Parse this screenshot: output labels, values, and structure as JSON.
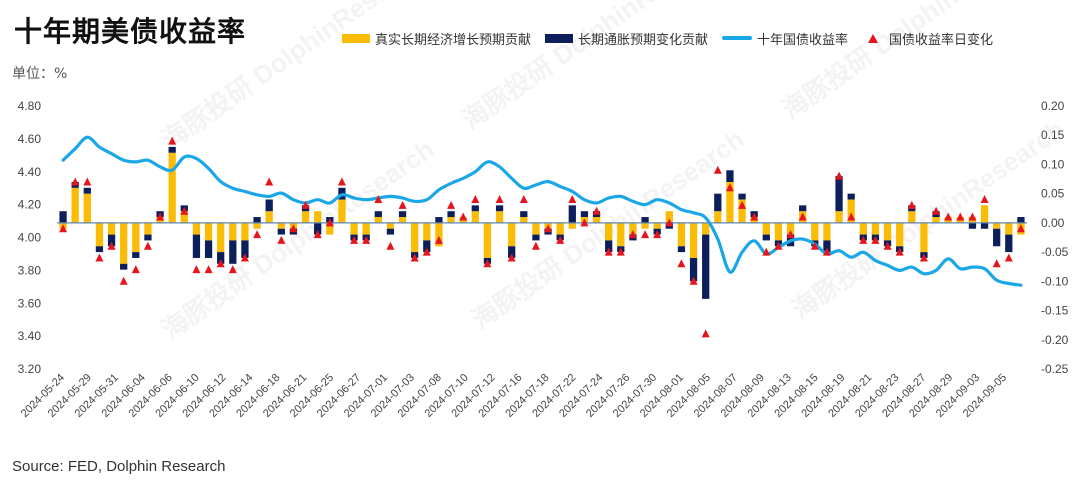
{
  "title": "十年期美债收益率",
  "unit_label": "单位：%",
  "source": "Source: FED, Dolphin Research",
  "watermark": "海豚投研 DolphinResearch",
  "colors": {
    "real": "#fbbc05",
    "infl": "#0c1f5b",
    "line": "#1aa7e8",
    "marker": "#e8141c",
    "baseline": "#5b86b8"
  },
  "chart_data": {
    "type": "bar+line",
    "legend": [
      {
        "key": "real",
        "label": "真实长期经济增长预期贡献"
      },
      {
        "key": "infl",
        "label": "长期通胀预期变化贡献"
      },
      {
        "key": "line",
        "label": "十年国债收益率"
      },
      {
        "key": "marker",
        "label": "国债收益率日变化"
      }
    ],
    "left_axis": {
      "min": 3.2,
      "max": 4.8,
      "step": 0.2,
      "ticks": [
        "3.20",
        "3.40",
        "3.60",
        "3.80",
        "4.00",
        "4.20",
        "4.40",
        "4.60",
        "4.80"
      ]
    },
    "right_axis": {
      "min": -0.25,
      "max": 0.2,
      "step": 0.05,
      "ticks": [
        "-0.25",
        "-0.20",
        "-0.15",
        "-0.10",
        "-0.05",
        "0.00",
        "0.05",
        "0.10",
        "0.15",
        "0.20"
      ]
    },
    "x_tick_labels": [
      "2024-05-24",
      "2024-05-29",
      "2024-05-31",
      "2024-06-04",
      "2024-06-06",
      "2024-06-10",
      "2024-06-12",
      "2024-06-14",
      "2024-06-18",
      "2024-06-21",
      "2024-06-25",
      "2024-06-27",
      "2024-07-01",
      "2024-07-03",
      "2024-07-08",
      "2024-07-10",
      "2024-07-12",
      "2024-07-16",
      "2024-07-18",
      "2024-07-22",
      "2024-07-24",
      "2024-07-26",
      "2024-07-30",
      "2024-08-01",
      "2024-08-05",
      "2024-08-07",
      "2024-08-09",
      "2024-08-13",
      "2024-08-15",
      "2024-08-19",
      "2024-08-21",
      "2024-08-23",
      "2024-08-27",
      "2024-08-29",
      "2024-09-03",
      "2024-09-05"
    ],
    "real_contribution": [
      -0.01,
      0.06,
      0.05,
      -0.04,
      -0.02,
      -0.07,
      -0.05,
      -0.02,
      0.01,
      0.12,
      0.02,
      -0.02,
      -0.03,
      -0.05,
      -0.03,
      -0.03,
      -0.01,
      0.02,
      -0.01,
      -0.01,
      0.02,
      0.02,
      -0.02,
      0.04,
      -0.02,
      -0.02,
      0.01,
      -0.01,
      0.01,
      -0.05,
      -0.03,
      -0.04,
      0.01,
      0.01,
      0.02,
      -0.06,
      0.02,
      -0.04,
      0.01,
      -0.02,
      -0.01,
      -0.02,
      -0.01,
      0.01,
      0.01,
      -0.03,
      -0.04,
      -0.02,
      -0.01,
      -0.01,
      0.02,
      -0.04,
      -0.06,
      -0.02,
      0.02,
      0.07,
      0.04,
      0.01,
      -0.02,
      -0.03,
      -0.02,
      0.02,
      -0.03,
      -0.03,
      0.02,
      0.04,
      -0.02,
      -0.02,
      -0.03,
      -0.04,
      0.02,
      -0.05,
      0.01,
      0.01,
      0.01,
      0.01,
      0.03,
      -0.01,
      -0.02,
      -0.02
    ],
    "infl_contribution": [
      0.02,
      0.01,
      0.01,
      -0.01,
      -0.02,
      -0.01,
      -0.01,
      -0.01,
      0.01,
      0.01,
      0.01,
      -0.04,
      -0.03,
      -0.02,
      -0.04,
      -0.03,
      0.01,
      0.02,
      -0.01,
      -0.01,
      0.01,
      -0.02,
      0.01,
      0.02,
      -0.01,
      -0.01,
      0.01,
      -0.01,
      0.01,
      -0.01,
      -0.02,
      0.01,
      0.01,
      0.0,
      0.01,
      -0.01,
      0.01,
      -0.02,
      0.01,
      -0.01,
      -0.01,
      -0.01,
      0.03,
      0.01,
      0.01,
      -0.02,
      -0.01,
      -0.01,
      0.01,
      -0.01,
      -0.01,
      -0.01,
      -0.04,
      -0.11,
      0.03,
      0.02,
      0.01,
      0.01,
      -0.01,
      -0.01,
      -0.02,
      0.01,
      -0.01,
      -0.02,
      0.06,
      0.01,
      -0.01,
      -0.01,
      -0.01,
      -0.01,
      0.01,
      -0.01,
      0.01,
      0.0,
      0.0,
      -0.01,
      -0.01,
      -0.03,
      -0.03,
      0.01
    ],
    "yield": [
      4.47,
      4.54,
      4.61,
      4.55,
      4.51,
      4.47,
      4.46,
      4.47,
      4.43,
      4.41,
      4.49,
      4.48,
      4.42,
      4.34,
      4.3,
      4.28,
      4.26,
      4.25,
      4.27,
      4.23,
      4.21,
      4.23,
      4.21,
      4.26,
      4.24,
      4.23,
      4.24,
      4.25,
      4.24,
      4.22,
      4.23,
      4.29,
      4.33,
      4.36,
      4.4,
      4.46,
      4.43,
      4.36,
      4.3,
      4.32,
      4.34,
      4.31,
      4.28,
      4.23,
      4.21,
      4.24,
      4.25,
      4.22,
      4.2,
      4.23,
      4.21,
      4.17,
      4.15,
      4.12,
      3.99,
      3.79,
      3.91,
      3.98,
      3.9,
      3.94,
      3.98,
      3.99,
      3.96,
      3.9,
      3.92,
      3.88,
      3.91,
      3.86,
      3.83,
      3.8,
      3.82,
      3.78,
      3.8,
      3.87,
      3.81,
      3.82,
      3.81,
      3.74,
      3.72,
      3.71
    ],
    "daily_change": [
      -0.01,
      0.07,
      0.07,
      -0.06,
      -0.04,
      -0.1,
      -0.08,
      -0.04,
      0.01,
      0.14,
      0.02,
      -0.08,
      -0.08,
      -0.07,
      -0.08,
      -0.06,
      -0.02,
      0.07,
      -0.03,
      -0.01,
      0.03,
      -0.02,
      0.0,
      0.07,
      -0.03,
      -0.03,
      0.04,
      -0.04,
      0.03,
      -0.06,
      -0.05,
      -0.03,
      0.03,
      0.01,
      0.04,
      -0.07,
      0.04,
      -0.06,
      0.04,
      -0.04,
      -0.01,
      -0.03,
      0.04,
      0.0,
      0.02,
      -0.05,
      -0.05,
      -0.02,
      -0.02,
      -0.02,
      0.0,
      -0.07,
      -0.1,
      -0.19,
      0.09,
      0.06,
      0.03,
      0.01,
      -0.05,
      -0.04,
      -0.02,
      0.01,
      -0.04,
      -0.05,
      0.08,
      0.01,
      -0.03,
      -0.03,
      -0.04,
      -0.05,
      0.03,
      -0.06,
      0.02,
      0.01,
      0.01,
      0.01,
      0.04,
      -0.07,
      -0.06,
      -0.01
    ]
  }
}
